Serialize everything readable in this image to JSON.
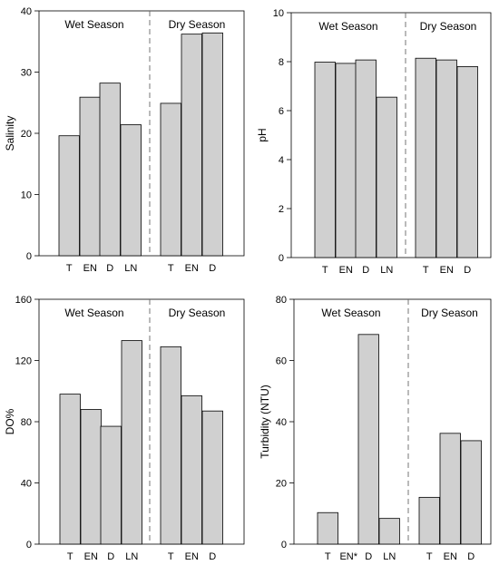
{
  "chart_data": [
    {
      "type": "bar",
      "ylabel": "Salinity",
      "ylim": [
        0,
        40
      ],
      "yticks": [
        0,
        10,
        20,
        30,
        40
      ],
      "groups": [
        {
          "label": "Wet Season",
          "categories": [
            "T",
            "EN",
            "D",
            "LN"
          ],
          "values": [
            19.6,
            25.9,
            28.2,
            21.4
          ]
        },
        {
          "label": "Dry Season",
          "categories": [
            "T",
            "EN",
            "D"
          ],
          "values": [
            24.9,
            36.2,
            36.4
          ]
        }
      ],
      "bar_color": "#d0d0d0"
    },
    {
      "type": "bar",
      "ylabel": "pH",
      "ylim": [
        0,
        10
      ],
      "yticks": [
        0,
        2,
        4,
        6,
        8,
        10
      ],
      "groups": [
        {
          "label": "Wet Season",
          "categories": [
            "T",
            "EN",
            "D",
            "LN"
          ],
          "values": [
            7.98,
            7.93,
            8.07,
            6.55
          ]
        },
        {
          "label": "Dry Season",
          "categories": [
            "T",
            "EN",
            "D"
          ],
          "values": [
            8.14,
            8.07,
            7.8
          ]
        }
      ],
      "bar_color": "#d0d0d0"
    },
    {
      "type": "bar",
      "ylabel": "DO%",
      "ylim": [
        0,
        160
      ],
      "yticks": [
        0,
        40,
        80,
        120,
        160
      ],
      "groups": [
        {
          "label": "Wet Season",
          "categories": [
            "T",
            "EN",
            "D",
            "LN"
          ],
          "values": [
            98,
            88,
            77,
            133
          ]
        },
        {
          "label": "Dry Season",
          "categories": [
            "T",
            "EN",
            "D"
          ],
          "values": [
            129,
            97,
            87
          ]
        }
      ],
      "bar_color": "#d0d0d0"
    },
    {
      "type": "bar",
      "ylabel": "Turbidity (NTU)",
      "ylim": [
        0,
        80
      ],
      "yticks": [
        0,
        20,
        40,
        60,
        80
      ],
      "groups": [
        {
          "label": "Wet Season",
          "categories": [
            "T",
            "EN*",
            "D",
            "LN"
          ],
          "values": [
            10.3,
            0,
            68.5,
            8.4
          ]
        },
        {
          "label": "Dry Season",
          "categories": [
            "T",
            "EN",
            "D"
          ],
          "values": [
            15.3,
            36.2,
            33.8
          ]
        }
      ],
      "bar_color": "#d0d0d0"
    }
  ]
}
